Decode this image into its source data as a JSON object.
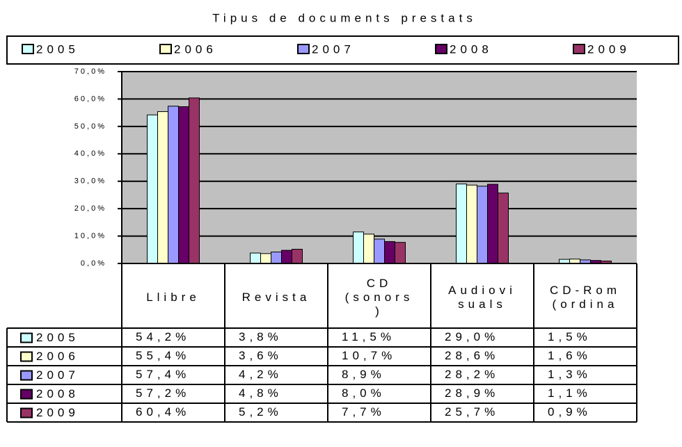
{
  "chart_data": {
    "type": "bar",
    "title": "Tipus de documents prestats",
    "categories": [
      "Llibre",
      "Revista",
      "CD (sonors)",
      "Audiovisuals",
      "CD-Rom (ordina"
    ],
    "series": [
      {
        "name": "2005",
        "color": "#ccffff",
        "values": [
          54.2,
          3.8,
          11.5,
          29.0,
          1.5
        ],
        "value_labels": [
          "54,2%",
          "3,8%",
          "11,5%",
          "29,0%",
          "1,5%"
        ]
      },
      {
        "name": "2006",
        "color": "#ffffcc",
        "values": [
          55.4,
          3.6,
          10.7,
          28.6,
          1.6
        ],
        "value_labels": [
          "55,4%",
          "3,6%",
          "10,7%",
          "28,6%",
          "1,6%"
        ]
      },
      {
        "name": "2007",
        "color": "#9999ff",
        "values": [
          57.4,
          4.2,
          8.9,
          28.2,
          1.3
        ],
        "value_labels": [
          "57,4%",
          "4,2%",
          "8,9%",
          "28,2%",
          "1,3%"
        ]
      },
      {
        "name": "2008",
        "color": "#660066",
        "values": [
          57.2,
          4.8,
          8.0,
          28.9,
          1.1
        ],
        "value_labels": [
          "57,2%",
          "4,8%",
          "8,0%",
          "28,9%",
          "1,1%"
        ]
      },
      {
        "name": "2009",
        "color": "#993366",
        "values": [
          60.4,
          5.2,
          7.7,
          25.7,
          0.9
        ],
        "value_labels": [
          "60,4%",
          "5,2%",
          "7,7%",
          "25,7%",
          "0,9%"
        ]
      }
    ],
    "ylim": [
      0,
      70
    ],
    "yticks": [
      {
        "value": 0,
        "label": "0,0%"
      },
      {
        "value": 10,
        "label": "10,0%"
      },
      {
        "value": 20,
        "label": "20,0%"
      },
      {
        "value": 30,
        "label": "30,0%"
      },
      {
        "value": 40,
        "label": "40,0%"
      },
      {
        "value": 50,
        "label": "50,0%"
      },
      {
        "value": 60,
        "label": "60,0%"
      },
      {
        "value": 70,
        "label": "70,0%"
      }
    ],
    "grid": true,
    "legend": "top",
    "data_table": true
  }
}
